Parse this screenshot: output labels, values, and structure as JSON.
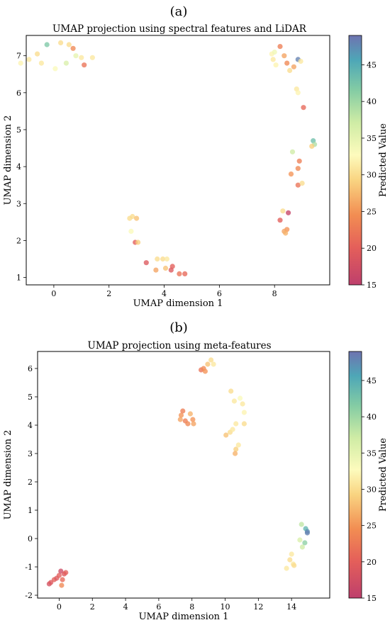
{
  "chart_data": [
    {
      "panel_label": "(a)",
      "type": "scatter",
      "title": "UMAP projection using spectral features and LiDAR",
      "xlabel": "UMAP dimension 1",
      "ylabel": "UMAP dimension 2",
      "xlim": [
        -1.0,
        10.0
      ],
      "ylim": [
        0.8,
        7.55
      ],
      "xticks": [
        0,
        2,
        4,
        6,
        8
      ],
      "yticks": [
        1,
        2,
        3,
        4,
        5,
        6,
        7
      ],
      "grid": false,
      "colorbar": {
        "label": "Predicted Value",
        "range": [
          15,
          49
        ],
        "ticks": [
          15,
          20,
          25,
          30,
          35,
          40,
          45
        ],
        "colormap": "Spectral"
      },
      "points": [
        {
          "x": -1.2,
          "y": 6.8,
          "v": 32
        },
        {
          "x": -0.9,
          "y": 6.9,
          "v": 31
        },
        {
          "x": -0.6,
          "y": 7.05,
          "v": 30
        },
        {
          "x": -0.45,
          "y": 6.8,
          "v": 31
        },
        {
          "x": -0.25,
          "y": 7.3,
          "v": 42
        },
        {
          "x": 0.05,
          "y": 6.65,
          "v": 33
        },
        {
          "x": 0.25,
          "y": 7.35,
          "v": 30
        },
        {
          "x": 0.45,
          "y": 6.8,
          "v": 36
        },
        {
          "x": 0.55,
          "y": 7.3,
          "v": 30
        },
        {
          "x": 0.7,
          "y": 7.2,
          "v": 24
        },
        {
          "x": 0.8,
          "y": 7.0,
          "v": 35
        },
        {
          "x": 1.0,
          "y": 6.95,
          "v": 31
        },
        {
          "x": 1.1,
          "y": 6.75,
          "v": 22
        },
        {
          "x": 1.4,
          "y": 6.95,
          "v": 31
        },
        {
          "x": 7.9,
          "y": 7.05,
          "v": 32
        },
        {
          "x": 8.0,
          "y": 7.1,
          "v": 34
        },
        {
          "x": 7.95,
          "y": 6.9,
          "v": 31
        },
        {
          "x": 8.05,
          "y": 6.75,
          "v": 32
        },
        {
          "x": 8.2,
          "y": 7.25,
          "v": 23
        },
        {
          "x": 8.35,
          "y": 7.0,
          "v": 26
        },
        {
          "x": 8.45,
          "y": 6.8,
          "v": 24
        },
        {
          "x": 8.55,
          "y": 6.6,
          "v": 30
        },
        {
          "x": 8.7,
          "y": 6.7,
          "v": 26
        },
        {
          "x": 8.85,
          "y": 6.9,
          "v": 48
        },
        {
          "x": 8.8,
          "y": 6.1,
          "v": 31
        },
        {
          "x": 8.85,
          "y": 6.0,
          "v": 32
        },
        {
          "x": 8.95,
          "y": 6.85,
          "v": 31
        },
        {
          "x": 9.05,
          "y": 5.6,
          "v": 21
        },
        {
          "x": 9.4,
          "y": 4.7,
          "v": 43
        },
        {
          "x": 9.45,
          "y": 4.6,
          "v": 39
        },
        {
          "x": 9.35,
          "y": 4.55,
          "v": 29
        },
        {
          "x": 8.65,
          "y": 4.4,
          "v": 37
        },
        {
          "x": 8.9,
          "y": 4.15,
          "v": 23
        },
        {
          "x": 8.85,
          "y": 3.95,
          "v": 24
        },
        {
          "x": 8.6,
          "y": 3.8,
          "v": 25
        },
        {
          "x": 8.85,
          "y": 3.5,
          "v": 22
        },
        {
          "x": 9.0,
          "y": 3.55,
          "v": 30
        },
        {
          "x": 8.3,
          "y": 2.8,
          "v": 30
        },
        {
          "x": 8.5,
          "y": 2.75,
          "v": 16
        },
        {
          "x": 8.2,
          "y": 2.55,
          "v": 20
        },
        {
          "x": 8.45,
          "y": 2.3,
          "v": 25
        },
        {
          "x": 8.35,
          "y": 2.25,
          "v": 26
        },
        {
          "x": 8.4,
          "y": 2.2,
          "v": 27
        },
        {
          "x": 2.75,
          "y": 2.6,
          "v": 30
        },
        {
          "x": 2.85,
          "y": 2.65,
          "v": 30
        },
        {
          "x": 3.0,
          "y": 2.6,
          "v": 28
        },
        {
          "x": 2.8,
          "y": 2.25,
          "v": 33
        },
        {
          "x": 2.95,
          "y": 1.95,
          "v": 20
        },
        {
          "x": 3.05,
          "y": 1.95,
          "v": 29
        },
        {
          "x": 3.35,
          "y": 1.4,
          "v": 19
        },
        {
          "x": 3.75,
          "y": 1.5,
          "v": 30
        },
        {
          "x": 3.95,
          "y": 1.5,
          "v": 30
        },
        {
          "x": 4.1,
          "y": 1.5,
          "v": 31
        },
        {
          "x": 3.7,
          "y": 1.2,
          "v": 26
        },
        {
          "x": 4.05,
          "y": 1.25,
          "v": 28
        },
        {
          "x": 4.3,
          "y": 1.3,
          "v": 20
        },
        {
          "x": 4.25,
          "y": 1.2,
          "v": 19
        },
        {
          "x": 4.55,
          "y": 1.1,
          "v": 22
        },
        {
          "x": 4.75,
          "y": 1.1,
          "v": 21
        }
      ]
    },
    {
      "panel_label": "(b)",
      "type": "scatter",
      "title": "UMAP projection using meta-features",
      "xlabel": "UMAP dimension 1",
      "ylabel": "UMAP dimension 2",
      "xlim": [
        -1.3,
        16.3
      ],
      "ylim": [
        -2.1,
        6.6
      ],
      "xticks": [
        0,
        2,
        4,
        6,
        8,
        10,
        12,
        14
      ],
      "yticks": [
        -2,
        -1,
        0,
        1,
        2,
        3,
        4,
        5,
        6
      ],
      "grid": false,
      "colorbar": {
        "label": "Predicted Value",
        "range": [
          15,
          49
        ],
        "ticks": [
          15,
          20,
          25,
          30,
          35,
          40,
          45
        ],
        "colormap": "Spectral"
      },
      "points": [
        {
          "x": -0.6,
          "y": -1.6,
          "v": 18
        },
        {
          "x": -0.5,
          "y": -1.55,
          "v": 19
        },
        {
          "x": -0.3,
          "y": -1.45,
          "v": 20
        },
        {
          "x": -0.15,
          "y": -1.4,
          "v": 19
        },
        {
          "x": 0.0,
          "y": -1.3,
          "v": 20
        },
        {
          "x": 0.1,
          "y": -1.15,
          "v": 17
        },
        {
          "x": 0.2,
          "y": -1.45,
          "v": 21
        },
        {
          "x": 0.15,
          "y": -1.65,
          "v": 24
        },
        {
          "x": 0.3,
          "y": -1.25,
          "v": 19
        },
        {
          "x": 0.4,
          "y": -1.2,
          "v": 20
        },
        {
          "x": 7.35,
          "y": 4.35,
          "v": 25
        },
        {
          "x": 7.45,
          "y": 4.5,
          "v": 23
        },
        {
          "x": 7.3,
          "y": 4.2,
          "v": 26
        },
        {
          "x": 7.6,
          "y": 4.15,
          "v": 23
        },
        {
          "x": 7.75,
          "y": 4.05,
          "v": 24
        },
        {
          "x": 7.9,
          "y": 4.4,
          "v": 27
        },
        {
          "x": 8.05,
          "y": 4.2,
          "v": 25
        },
        {
          "x": 8.1,
          "y": 4.05,
          "v": 26
        },
        {
          "x": 8.55,
          "y": 5.95,
          "v": 22
        },
        {
          "x": 8.7,
          "y": 6.0,
          "v": 24
        },
        {
          "x": 8.8,
          "y": 5.9,
          "v": 25
        },
        {
          "x": 8.95,
          "y": 6.15,
          "v": 28
        },
        {
          "x": 9.15,
          "y": 6.3,
          "v": 30
        },
        {
          "x": 9.3,
          "y": 6.15,
          "v": 31
        },
        {
          "x": 10.05,
          "y": 3.65,
          "v": 28
        },
        {
          "x": 10.3,
          "y": 3.75,
          "v": 30
        },
        {
          "x": 10.35,
          "y": 5.2,
          "v": 30
        },
        {
          "x": 10.45,
          "y": 3.85,
          "v": 31
        },
        {
          "x": 10.55,
          "y": 4.85,
          "v": 31
        },
        {
          "x": 10.65,
          "y": 4.05,
          "v": 31
        },
        {
          "x": 10.65,
          "y": 3.15,
          "v": 29
        },
        {
          "x": 10.6,
          "y": 3.0,
          "v": 27
        },
        {
          "x": 10.8,
          "y": 3.3,
          "v": 31
        },
        {
          "x": 10.9,
          "y": 4.95,
          "v": 33
        },
        {
          "x": 11.05,
          "y": 4.75,
          "v": 31
        },
        {
          "x": 11.15,
          "y": 4.45,
          "v": 32
        },
        {
          "x": 11.15,
          "y": 4.05,
          "v": 30
        },
        {
          "x": 13.7,
          "y": -1.05,
          "v": 31
        },
        {
          "x": 13.9,
          "y": -0.75,
          "v": 30
        },
        {
          "x": 14.0,
          "y": -0.55,
          "v": 31
        },
        {
          "x": 14.1,
          "y": -0.9,
          "v": 31
        },
        {
          "x": 14.15,
          "y": -0.95,
          "v": 30
        },
        {
          "x": 14.5,
          "y": -0.05,
          "v": 36
        },
        {
          "x": 14.65,
          "y": -0.3,
          "v": 37
        },
        {
          "x": 14.6,
          "y": 0.5,
          "v": 38
        },
        {
          "x": 14.8,
          "y": -0.15,
          "v": 41
        },
        {
          "x": 14.85,
          "y": 0.35,
          "v": 44
        },
        {
          "x": 14.95,
          "y": 0.25,
          "v": 47
        },
        {
          "x": 14.95,
          "y": 0.2,
          "v": 48
        }
      ]
    }
  ]
}
